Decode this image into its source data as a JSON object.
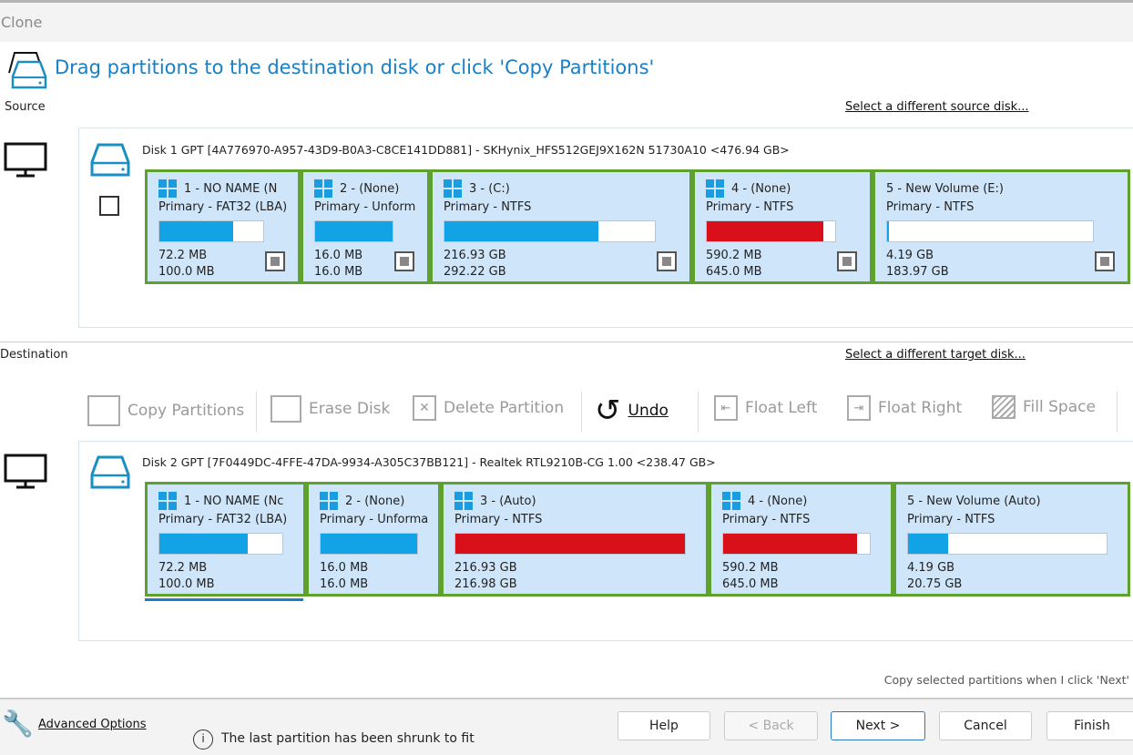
{
  "window": {
    "title": "Clone"
  },
  "header": {
    "instruction": "Drag partitions to the destination disk or click 'Copy Partitions'"
  },
  "source": {
    "label": "Source",
    "select_link": "Select a different source disk...",
    "disk_title": "Disk 1 GPT [4A776970-A957-43D9-B0A3-C8CE141DD881] - SKHynix_HFS512GEJ9X162N 51730A10  <476.94 GB>",
    "partitions": [
      {
        "name": "1 - NO NAME (N",
        "fs": "Primary - FAT32 (LBA)",
        "used": "72.2 MB",
        "total": "100.0 MB",
        "fill": 0.71,
        "color": "#12a3e6",
        "win": true
      },
      {
        "name": "2 -  (None)",
        "fs": "Primary - Unform",
        "used": "16.0 MB",
        "total": "16.0 MB",
        "fill": 1.0,
        "color": "#12a3e6",
        "win": true
      },
      {
        "name": "3 -  (C:)",
        "fs": "Primary - NTFS",
        "used": "216.93 GB",
        "total": "292.22 GB",
        "fill": 0.73,
        "color": "#12a3e6",
        "win": true
      },
      {
        "name": "4 -  (None)",
        "fs": "Primary - NTFS",
        "used": "590.2 MB",
        "total": "645.0 MB",
        "fill": 0.91,
        "color": "#d9101a",
        "win": true
      },
      {
        "name": "5 - New Volume (E:)",
        "fs": "Primary - NTFS",
        "used": "4.19 GB",
        "total": "183.97 GB",
        "fill": 0.01,
        "color": "#12a3e6",
        "win": false
      }
    ]
  },
  "destination": {
    "label": "Destination",
    "select_link": "Select a different target disk...",
    "disk_title": "Disk 2 GPT [7F0449DC-4FFE-47DA-9934-A305C37BB121] - Realtek  RTL9210B-CG      1.00  <238.47 GB>",
    "partitions": [
      {
        "name": "1 - NO NAME (Nc",
        "fs": "Primary - FAT32 (LBA)",
        "used": "72.2 MB",
        "total": "100.0 MB",
        "fill": 0.72,
        "color": "#12a3e6",
        "win": true
      },
      {
        "name": "2 -  (None)",
        "fs": "Primary - Unforma",
        "used": "16.0 MB",
        "total": "16.0 MB",
        "fill": 1.0,
        "color": "#12a3e6",
        "win": true
      },
      {
        "name": "3 -  (Auto)",
        "fs": "Primary - NTFS",
        "used": "216.93 GB",
        "total": "216.98 GB",
        "fill": 1.0,
        "color": "#d9101a",
        "win": true
      },
      {
        "name": "4 -  (None)",
        "fs": "Primary - NTFS",
        "used": "590.2 MB",
        "total": "645.0 MB",
        "fill": 0.91,
        "color": "#d9101a",
        "win": true
      },
      {
        "name": "5 - New Volume (Auto)",
        "fs": "Primary - NTFS",
        "used": "4.19 GB",
        "total": "20.75 GB",
        "fill": 0.2,
        "color": "#12a3e6",
        "win": false
      }
    ]
  },
  "toolbar": {
    "copy": "Copy Partitions",
    "erase": "Erase Disk",
    "delete": "Delete Partition",
    "undo": "Undo",
    "float_left": "Float Left",
    "float_right": "Float Right",
    "fill": "Fill Space"
  },
  "copy_note": "Copy selected partitions when I click 'Next'",
  "footer": {
    "advanced": "Advanced Options",
    "info": "The last partition has been shrunk to fit",
    "help": "Help",
    "back": "< Back",
    "next": "Next >",
    "cancel": "Cancel",
    "finish": "Finish"
  }
}
